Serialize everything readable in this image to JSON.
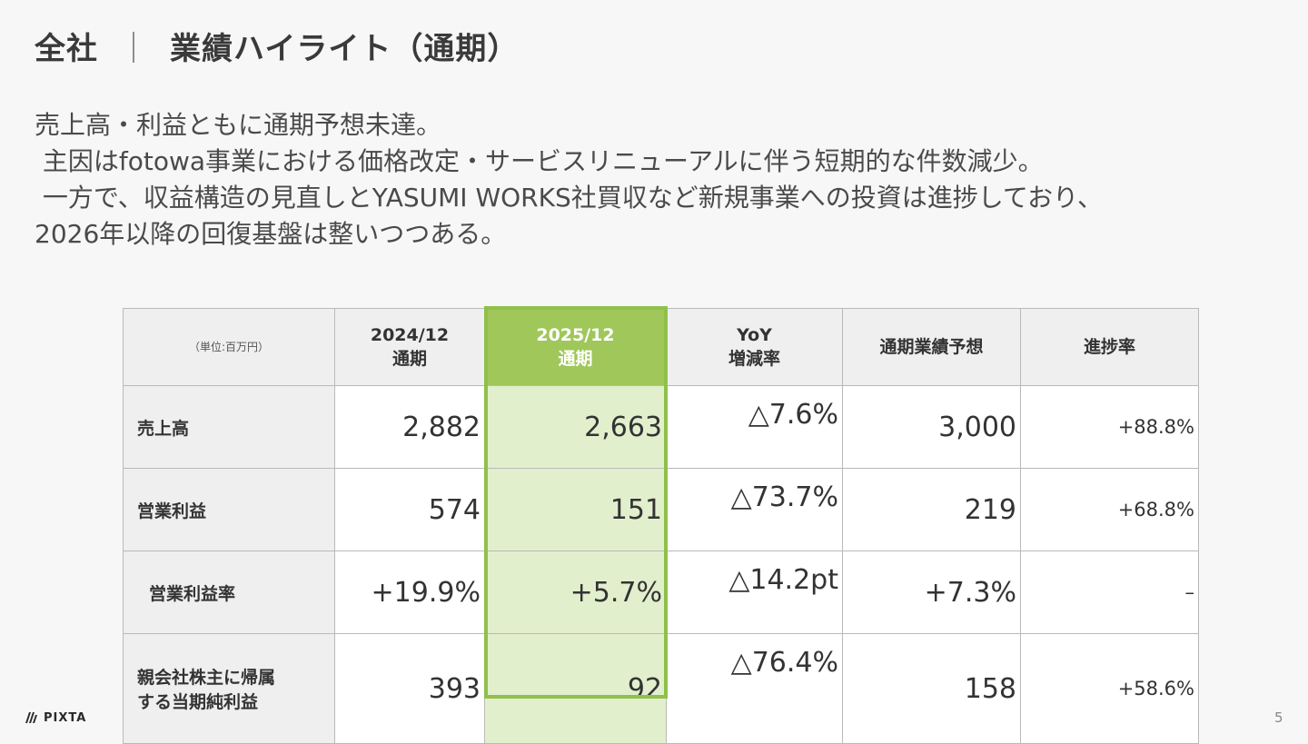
{
  "header": {
    "title_left": "全社",
    "separator": "｜",
    "title_right": "業績ハイライト（通期）"
  },
  "summary": {
    "lines": [
      "売上高・利益ともに通期予想未達。",
      " 主因はfotowa事業における価格改定・サービスリニューアルに伴う短期的な件数減少。",
      " 一方で、収益構造の見直しとYASUMI WORKS社買収など新規事業への投資は進捗しており、",
      "2026年以降の回復基盤は整いつつある。"
    ]
  },
  "table": {
    "unit": "（単位:百万円）",
    "columns": [
      {
        "line1": "2024/12",
        "line2": "通期"
      },
      {
        "line1": "2025/12",
        "line2": "通期"
      },
      {
        "line1": "YoY",
        "line2": "増減率"
      },
      {
        "line1": "通期業績予想",
        "line2": ""
      },
      {
        "line1": "進捗率",
        "line2": ""
      }
    ],
    "highlight_color": "#9fc75a",
    "highlight_fill": "#e2efcd",
    "rows": [
      {
        "label_line1": "売上高",
        "label_line2": "",
        "fy2024": "2,882",
        "fy2025": "2,663",
        "yoy": "△7.6%",
        "forecast": "3,000",
        "progress": "+88.8%"
      },
      {
        "label_line1": "営業利益",
        "label_line2": "",
        "fy2024": "574",
        "fy2025": "151",
        "yoy": "△73.7%",
        "forecast": "219",
        "progress": "+68.8%"
      },
      {
        "label_line1": "営業利益率",
        "label_line2": "",
        "fy2024": "+19.9%",
        "fy2025": "+5.7%",
        "yoy": "△14.2pt",
        "forecast": "+7.3%",
        "progress": "–"
      },
      {
        "label_line1": "親会社株主に帰属",
        "label_line2": "する当期純利益",
        "fy2024": "393",
        "fy2025": "92",
        "yoy": "△76.4%",
        "forecast": "158",
        "progress": "+58.6%"
      }
    ]
  },
  "footer": {
    "logo_text": "PIXTA",
    "logo_icon": "pixta-logo-icon",
    "page_number": "5"
  }
}
